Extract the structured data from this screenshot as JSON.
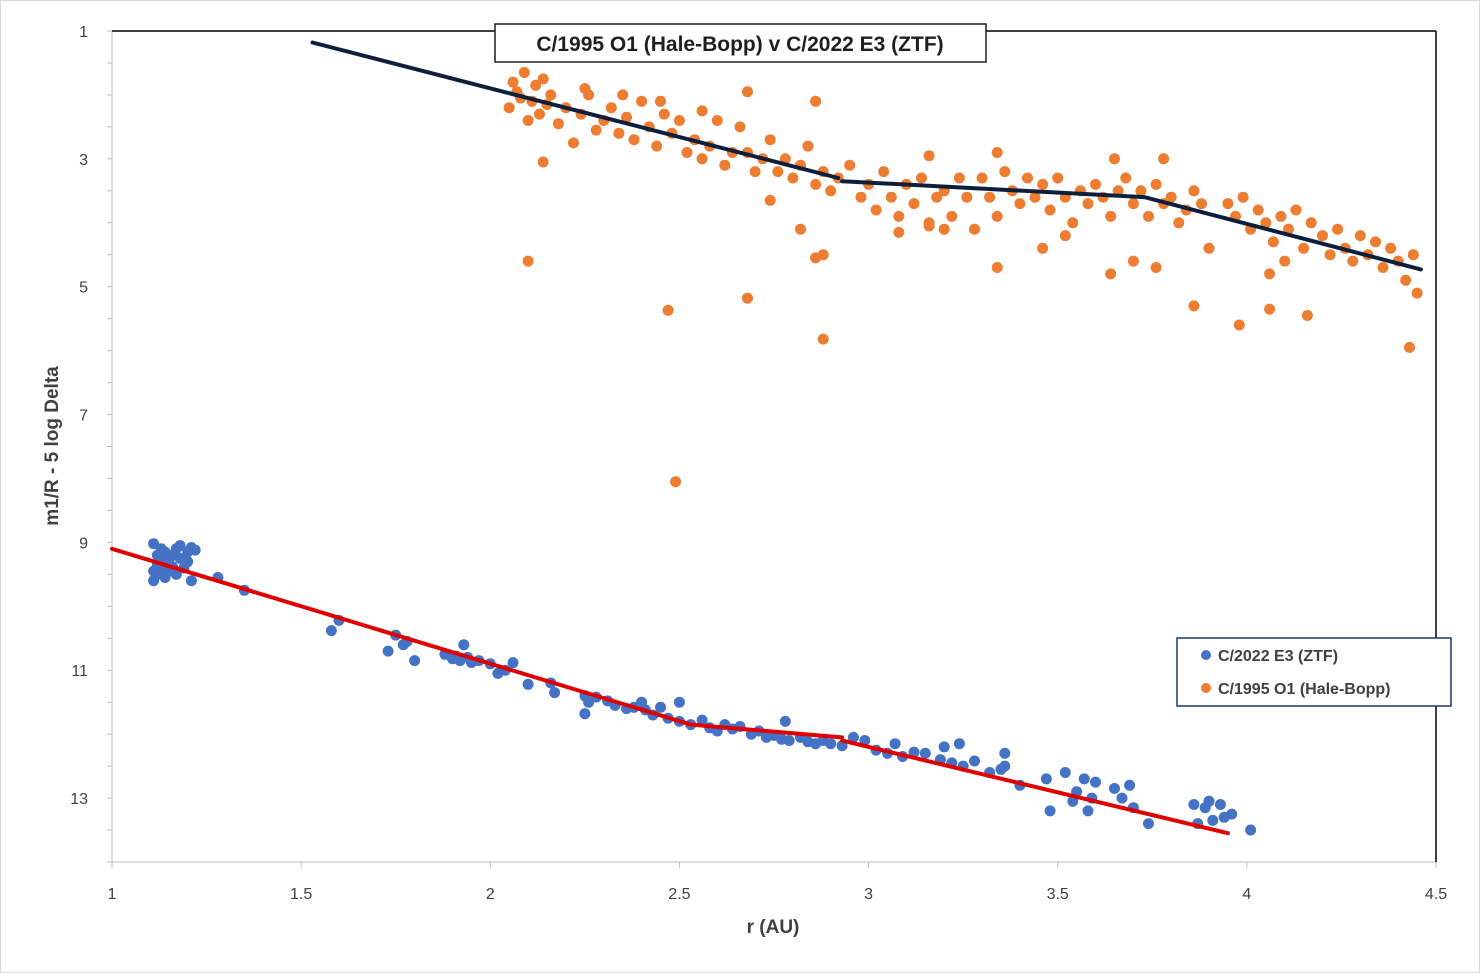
{
  "chart_data": {
    "type": "scatter",
    "title": "C/1995 O1 (Hale-Bopp) v C/2022 E3 (ZTF)",
    "xlabel": "r (AU)",
    "ylabel": "m1/R - 5 log Delta",
    "xlim": [
      1,
      4.5
    ],
    "ylim": [
      1,
      14
    ],
    "y_reversed": true,
    "x_ticks": [
      "1",
      "1.5",
      "2",
      "2.5",
      "3",
      "3.5",
      "4",
      "4.5"
    ],
    "y_ticks": [
      "1",
      "3",
      "5",
      "7",
      "9",
      "11",
      "13"
    ],
    "legend_position": "right",
    "series": [
      {
        "name": "C/2022 E3 (ZTF)",
        "color": "#4472c4",
        "points": [
          [
            1.11,
            9.02
          ],
          [
            1.11,
            9.45
          ],
          [
            1.11,
            9.6
          ],
          [
            1.12,
            9.2
          ],
          [
            1.12,
            9.35
          ],
          [
            1.12,
            9.5
          ],
          [
            1.13,
            9.1
          ],
          [
            1.13,
            9.28
          ],
          [
            1.13,
            9.42
          ],
          [
            1.14,
            9.15
          ],
          [
            1.14,
            9.55
          ],
          [
            1.15,
            9.3
          ],
          [
            1.15,
            9.45
          ],
          [
            1.16,
            9.2
          ],
          [
            1.16,
            9.38
          ],
          [
            1.17,
            9.1
          ],
          [
            1.17,
            9.5
          ],
          [
            1.18,
            9.05
          ],
          [
            1.18,
            9.25
          ],
          [
            1.19,
            9.4
          ],
          [
            1.2,
            9.15
          ],
          [
            1.2,
            9.3
          ],
          [
            1.21,
            9.08
          ],
          [
            1.21,
            9.6
          ],
          [
            1.22,
            9.12
          ],
          [
            1.28,
            9.55
          ],
          [
            1.35,
            9.75
          ],
          [
            1.58,
            10.38
          ],
          [
            1.6,
            10.22
          ],
          [
            1.73,
            10.7
          ],
          [
            1.75,
            10.45
          ],
          [
            1.77,
            10.6
          ],
          [
            1.78,
            10.55
          ],
          [
            1.8,
            10.85
          ],
          [
            1.88,
            10.75
          ],
          [
            1.9,
            10.82
          ],
          [
            1.91,
            10.78
          ],
          [
            1.92,
            10.85
          ],
          [
            1.93,
            10.6
          ],
          [
            1.94,
            10.8
          ],
          [
            1.95,
            10.88
          ],
          [
            1.97,
            10.85
          ],
          [
            2.0,
            10.9
          ],
          [
            2.02,
            11.05
          ],
          [
            2.04,
            11.0
          ],
          [
            2.06,
            10.88
          ],
          [
            2.1,
            11.22
          ],
          [
            2.16,
            11.2
          ],
          [
            2.17,
            11.35
          ],
          [
            2.25,
            11.4
          ],
          [
            2.25,
            11.68
          ],
          [
            2.26,
            11.5
          ],
          [
            2.28,
            11.42
          ],
          [
            2.31,
            11.48
          ],
          [
            2.33,
            11.55
          ],
          [
            2.36,
            11.6
          ],
          [
            2.38,
            11.58
          ],
          [
            2.4,
            11.5
          ],
          [
            2.41,
            11.62
          ],
          [
            2.43,
            11.7
          ],
          [
            2.45,
            11.58
          ],
          [
            2.47,
            11.75
          ],
          [
            2.5,
            11.8
          ],
          [
            2.5,
            11.5
          ],
          [
            2.53,
            11.85
          ],
          [
            2.56,
            11.78
          ],
          [
            2.58,
            11.9
          ],
          [
            2.6,
            11.95
          ],
          [
            2.62,
            11.85
          ],
          [
            2.64,
            11.92
          ],
          [
            2.66,
            11.88
          ],
          [
            2.69,
            12.0
          ],
          [
            2.71,
            11.95
          ],
          [
            2.73,
            12.05
          ],
          [
            2.75,
            12.02
          ],
          [
            2.77,
            12.08
          ],
          [
            2.78,
            11.8
          ],
          [
            2.79,
            12.1
          ],
          [
            2.82,
            12.05
          ],
          [
            2.84,
            12.12
          ],
          [
            2.86,
            12.15
          ],
          [
            2.88,
            12.1
          ],
          [
            2.9,
            12.15
          ],
          [
            2.93,
            12.18
          ],
          [
            2.96,
            12.05
          ],
          [
            2.99,
            12.1
          ],
          [
            3.02,
            12.25
          ],
          [
            3.05,
            12.3
          ],
          [
            3.07,
            12.15
          ],
          [
            3.09,
            12.35
          ],
          [
            3.12,
            12.28
          ],
          [
            3.15,
            12.3
          ],
          [
            3.19,
            12.4
          ],
          [
            3.2,
            12.2
          ],
          [
            3.22,
            12.45
          ],
          [
            3.24,
            12.15
          ],
          [
            3.25,
            12.5
          ],
          [
            3.28,
            12.42
          ],
          [
            3.32,
            12.6
          ],
          [
            3.35,
            12.55
          ],
          [
            3.36,
            12.3
          ],
          [
            3.36,
            12.5
          ],
          [
            3.4,
            12.8
          ],
          [
            3.47,
            12.7
          ],
          [
            3.48,
            13.2
          ],
          [
            3.52,
            12.6
          ],
          [
            3.54,
            13.05
          ],
          [
            3.55,
            12.9
          ],
          [
            3.57,
            12.7
          ],
          [
            3.58,
            13.2
          ],
          [
            3.59,
            13.0
          ],
          [
            3.6,
            12.75
          ],
          [
            3.65,
            12.85
          ],
          [
            3.67,
            13.0
          ],
          [
            3.69,
            12.8
          ],
          [
            3.7,
            13.15
          ],
          [
            3.74,
            13.4
          ],
          [
            3.86,
            13.1
          ],
          [
            3.87,
            13.4
          ],
          [
            3.89,
            13.15
          ],
          [
            3.9,
            13.05
          ],
          [
            3.91,
            13.35
          ],
          [
            3.93,
            13.1
          ],
          [
            3.94,
            13.3
          ],
          [
            3.96,
            13.25
          ],
          [
            4.01,
            13.5
          ]
        ]
      },
      {
        "name": "C/1995 O1 (Hale-Bopp)",
        "color": "#ed7d31",
        "points": [
          [
            2.05,
            2.2
          ],
          [
            2.06,
            1.8
          ],
          [
            2.07,
            1.95
          ],
          [
            2.08,
            2.05
          ],
          [
            2.09,
            1.65
          ],
          [
            2.1,
            2.4
          ],
          [
            2.11,
            2.1
          ],
          [
            2.12,
            1.85
          ],
          [
            2.13,
            2.3
          ],
          [
            2.14,
            1.75
          ],
          [
            2.15,
            2.15
          ],
          [
            2.16,
            2.0
          ],
          [
            2.18,
            2.45
          ],
          [
            2.2,
            2.2
          ],
          [
            2.22,
            2.75
          ],
          [
            2.24,
            2.3
          ],
          [
            2.26,
            2.0
          ],
          [
            2.28,
            2.55
          ],
          [
            2.3,
            2.4
          ],
          [
            2.32,
            2.2
          ],
          [
            2.34,
            2.6
          ],
          [
            2.36,
            2.35
          ],
          [
            2.38,
            2.7
          ],
          [
            2.4,
            2.1
          ],
          [
            2.42,
            2.5
          ],
          [
            2.44,
            2.8
          ],
          [
            2.46,
            2.3
          ],
          [
            2.48,
            2.6
          ],
          [
            2.5,
            2.4
          ],
          [
            2.52,
            2.9
          ],
          [
            2.54,
            2.7
          ],
          [
            2.56,
            3.0
          ],
          [
            2.58,
            2.8
          ],
          [
            2.6,
            2.4
          ],
          [
            2.62,
            3.1
          ],
          [
            2.64,
            2.9
          ],
          [
            2.66,
            2.5
          ],
          [
            2.68,
            2.9
          ],
          [
            2.7,
            3.2
          ],
          [
            2.72,
            3.0
          ],
          [
            2.74,
            2.7
          ],
          [
            2.76,
            3.2
          ],
          [
            2.78,
            3.0
          ],
          [
            2.8,
            3.3
          ],
          [
            2.82,
            3.1
          ],
          [
            2.84,
            2.8
          ],
          [
            2.86,
            3.4
          ],
          [
            2.88,
            3.2
          ],
          [
            2.9,
            3.5
          ],
          [
            2.92,
            3.3
          ],
          [
            2.95,
            3.1
          ],
          [
            2.98,
            3.6
          ],
          [
            3.0,
            3.4
          ],
          [
            3.02,
            3.8
          ],
          [
            3.04,
            3.2
          ],
          [
            3.06,
            3.6
          ],
          [
            3.08,
            3.9
          ],
          [
            3.1,
            3.4
          ],
          [
            3.12,
            3.7
          ],
          [
            3.14,
            3.3
          ],
          [
            3.16,
            4.0
          ],
          [
            3.18,
            3.6
          ],
          [
            3.2,
            3.5
          ],
          [
            3.22,
            3.9
          ],
          [
            3.24,
            3.3
          ],
          [
            3.26,
            3.6
          ],
          [
            3.3,
            3.3
          ],
          [
            3.32,
            3.6
          ],
          [
            3.34,
            3.9
          ],
          [
            3.36,
            3.2
          ],
          [
            3.38,
            3.5
          ],
          [
            3.4,
            3.7
          ],
          [
            3.42,
            3.3
          ],
          [
            3.44,
            3.6
          ],
          [
            3.46,
            3.4
          ],
          [
            3.48,
            3.8
          ],
          [
            3.5,
            3.3
          ],
          [
            3.52,
            3.6
          ],
          [
            3.54,
            4.0
          ],
          [
            3.56,
            3.5
          ],
          [
            3.58,
            3.7
          ],
          [
            3.6,
            3.4
          ],
          [
            3.62,
            3.6
          ],
          [
            3.64,
            3.9
          ],
          [
            3.66,
            3.5
          ],
          [
            3.68,
            3.3
          ],
          [
            3.7,
            3.7
          ],
          [
            3.72,
            3.5
          ],
          [
            3.74,
            3.9
          ],
          [
            3.76,
            3.4
          ],
          [
            3.78,
            3.7
          ],
          [
            3.8,
            3.6
          ],
          [
            3.82,
            4.0
          ],
          [
            3.84,
            3.8
          ],
          [
            3.86,
            3.5
          ],
          [
            3.88,
            3.7
          ],
          [
            3.95,
            3.7
          ],
          [
            3.97,
            3.9
          ],
          [
            3.99,
            3.6
          ],
          [
            4.01,
            4.1
          ],
          [
            4.03,
            3.8
          ],
          [
            4.05,
            4.0
          ],
          [
            4.07,
            4.3
          ],
          [
            4.09,
            3.9
          ],
          [
            4.11,
            4.1
          ],
          [
            4.13,
            3.8
          ],
          [
            4.15,
            4.4
          ],
          [
            4.17,
            4.0
          ],
          [
            4.2,
            4.2
          ],
          [
            4.22,
            4.5
          ],
          [
            4.24,
            4.1
          ],
          [
            4.26,
            4.4
          ],
          [
            4.28,
            4.6
          ],
          [
            4.3,
            4.2
          ],
          [
            4.32,
            4.5
          ],
          [
            4.34,
            4.3
          ],
          [
            4.36,
            4.7
          ],
          [
            4.38,
            4.4
          ],
          [
            4.4,
            4.6
          ],
          [
            4.42,
            4.9
          ],
          [
            4.44,
            4.5
          ],
          [
            4.45,
            5.1
          ],
          [
            4.43,
            5.95
          ],
          [
            4.1,
            4.6
          ],
          [
            4.06,
            4.8
          ],
          [
            3.9,
            4.4
          ],
          [
            3.86,
            5.3
          ],
          [
            3.76,
            4.7
          ],
          [
            3.7,
            4.6
          ],
          [
            3.64,
            4.8
          ],
          [
            3.52,
            4.2
          ],
          [
            3.46,
            4.4
          ],
          [
            3.34,
            4.7
          ],
          [
            3.28,
            4.1
          ],
          [
            3.2,
            4.1
          ],
          [
            3.16,
            4.05
          ],
          [
            3.08,
            4.15
          ],
          [
            2.88,
            4.5
          ],
          [
            2.86,
            4.55
          ],
          [
            2.82,
            4.1
          ],
          [
            2.74,
            3.65
          ],
          [
            2.68,
            5.18
          ],
          [
            2.88,
            5.82
          ],
          [
            2.47,
            5.37
          ],
          [
            2.49,
            8.05
          ],
          [
            2.1,
            4.6
          ],
          [
            2.14,
            3.05
          ],
          [
            3.98,
            5.6
          ],
          [
            4.06,
            5.35
          ],
          [
            4.16,
            5.45
          ],
          [
            2.25,
            1.9
          ],
          [
            2.35,
            2.0
          ],
          [
            2.45,
            2.1
          ],
          [
            2.56,
            2.25
          ],
          [
            2.68,
            1.95
          ],
          [
            2.86,
            2.1
          ],
          [
            3.16,
            2.95
          ],
          [
            3.34,
            2.9
          ],
          [
            3.65,
            3.0
          ],
          [
            3.78,
            3.0
          ]
        ]
      }
    ],
    "fit_lines": [
      {
        "color": "#0d1f3c",
        "points": [
          [
            1.53,
            1.18
          ],
          [
            2.92,
            3.3
          ]
        ]
      },
      {
        "color": "#0d1f3c",
        "points": [
          [
            2.93,
            3.35
          ],
          [
            3.73,
            3.6
          ],
          [
            4.46,
            4.73
          ]
        ]
      },
      {
        "color": "#e00000",
        "points": [
          [
            1.0,
            9.1
          ],
          [
            2.53,
            11.85
          ]
        ]
      },
      {
        "color": "#e00000",
        "points": [
          [
            2.53,
            11.85
          ],
          [
            2.93,
            12.05
          ]
        ]
      },
      {
        "color": "#e00000",
        "points": [
          [
            2.93,
            12.1
          ],
          [
            3.95,
            13.55
          ]
        ]
      }
    ]
  }
}
